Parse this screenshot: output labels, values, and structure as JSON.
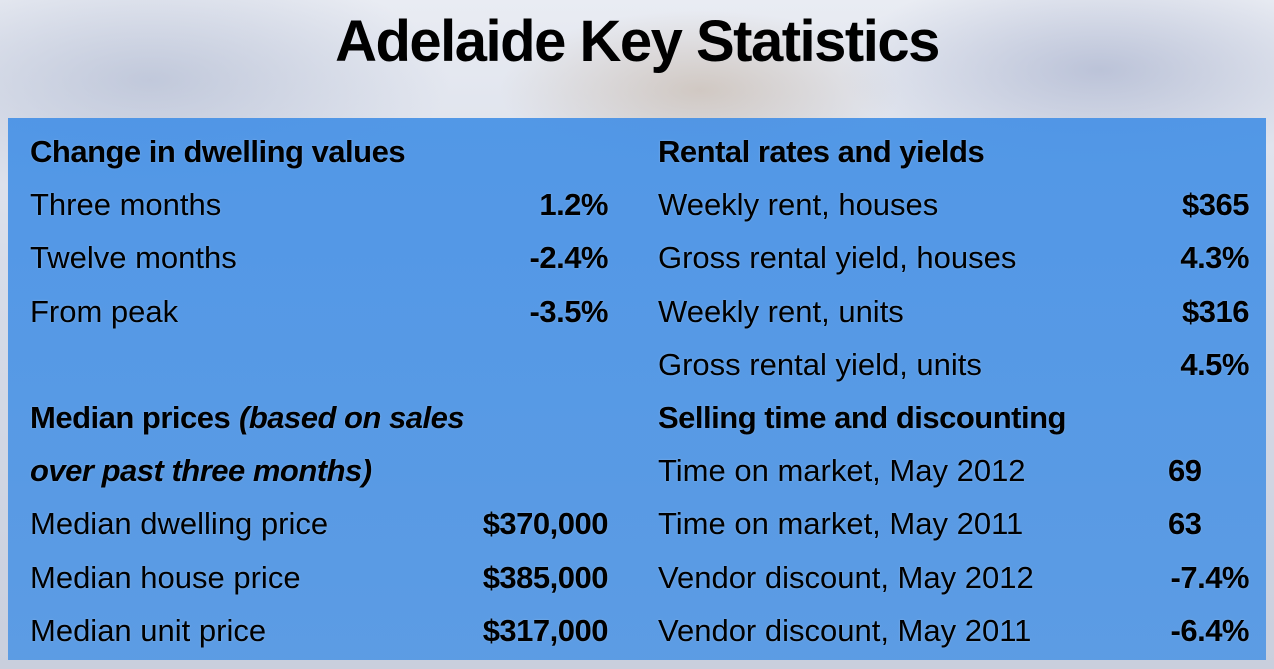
{
  "title": "Adelaide Key Statistics",
  "left": {
    "sections": [
      {
        "heading": "Change in dwelling values",
        "rows": [
          [
            "Three months",
            "1.2%"
          ],
          [
            "Twelve months",
            "-2.4%"
          ],
          [
            "From peak",
            "-3.5%"
          ]
        ]
      },
      {
        "heading": "Median prices",
        "heading_note": [
          "(based on sales",
          "over past three months)"
        ],
        "rows": [
          [
            "Median dwelling price",
            "$370,000"
          ],
          [
            "Median house price",
            "$385,000"
          ],
          [
            "Median unit price",
            "$317,000"
          ]
        ]
      }
    ]
  },
  "right": {
    "sections": [
      {
        "heading": "Rental rates and yields",
        "rows": [
          [
            "Weekly rent, houses",
            "$365"
          ],
          [
            "Gross rental yield, houses",
            "4.3%"
          ],
          [
            "Weekly rent, units",
            "$316"
          ],
          [
            "Gross rental yield, units",
            "4.5%"
          ]
        ]
      },
      {
        "heading": "Selling time and discounting",
        "rows": [
          [
            "Time on market, May 2012",
            "69"
          ],
          [
            "Time on market, May 2011",
            "63"
          ],
          [
            "Vendor discount, May 2012",
            "-7.4%"
          ],
          [
            "Vendor discount, May 2011",
            "-6.4%"
          ]
        ]
      }
    ]
  }
}
